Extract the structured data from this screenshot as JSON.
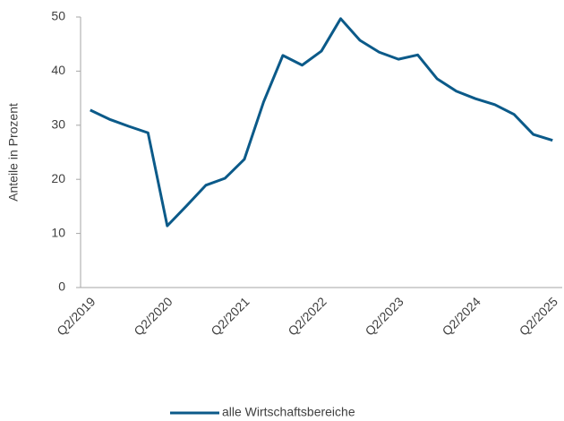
{
  "chart_data": {
    "type": "line",
    "y_label": "Anteile in Prozent",
    "categories": [
      "Q2/2019",
      null,
      null,
      null,
      "Q2/2020",
      null,
      null,
      null,
      "Q2/2021",
      null,
      null,
      null,
      "Q2/2022",
      null,
      null,
      null,
      "Q2/2023",
      null,
      null,
      null,
      "Q2/2024",
      null,
      null,
      null,
      "Q2/2025"
    ],
    "series": [
      {
        "name": "alle Wirtschaftsbereiche",
        "color": "#0b5a89",
        "values": [
          32.8,
          31.1,
          29.8,
          28.6,
          11.4,
          15.1,
          18.9,
          20.2,
          23.7,
          34.3,
          42.9,
          41.1,
          43.7,
          49.7,
          45.7,
          43.5,
          42.2,
          43.0,
          38.6,
          36.3,
          34.9,
          33.8,
          32.0,
          28.3,
          27.2
        ]
      }
    ],
    "ylim": [
      0,
      50
    ],
    "yticks": [
      0,
      10,
      20,
      30,
      40,
      50
    ],
    "legend": "bottom"
  }
}
